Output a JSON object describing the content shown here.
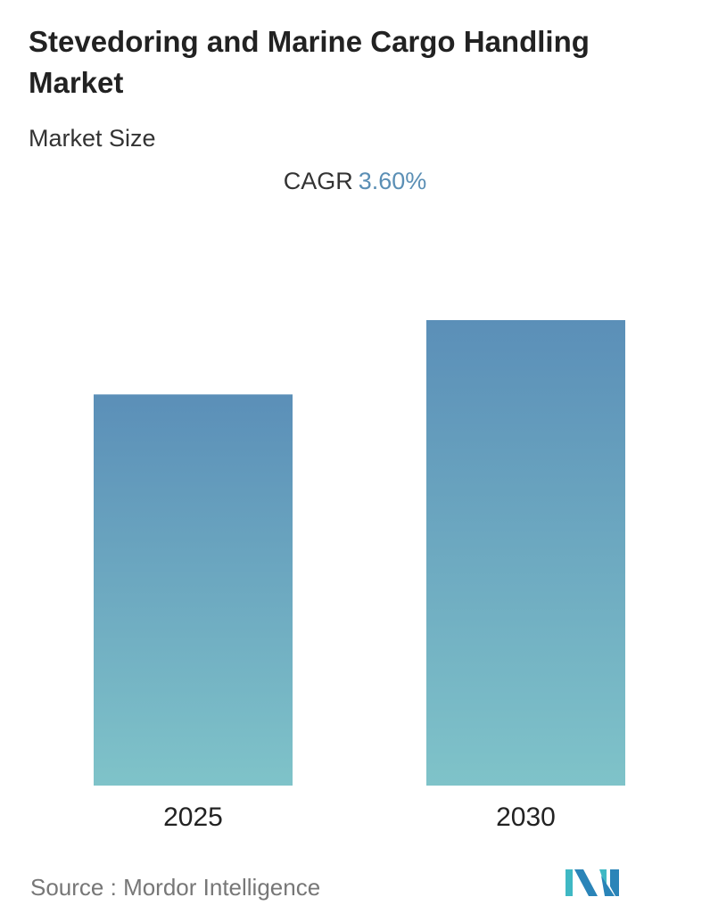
{
  "header": {
    "title": "Stevedoring and Marine Cargo Handling Market",
    "subtitle": "Market Size",
    "cagr_label": "CAGR",
    "cagr_value": "3.60%"
  },
  "chart_data": {
    "type": "bar",
    "categories": [
      "2025",
      "2030"
    ],
    "values": [
      1.0,
      1.19
    ],
    "title": "Stevedoring and Marine Cargo Handling Market",
    "xlabel": "",
    "ylabel": "",
    "grid": false,
    "colors": {
      "bar_top": "#5b8fb8",
      "bar_bottom": "#7fc3c9",
      "cagr": "#5b8fb5"
    }
  },
  "footer": {
    "source_label": "Source :",
    "source_name": "Mordor Intelligence",
    "logo_text": "Mordor Intelligence"
  }
}
